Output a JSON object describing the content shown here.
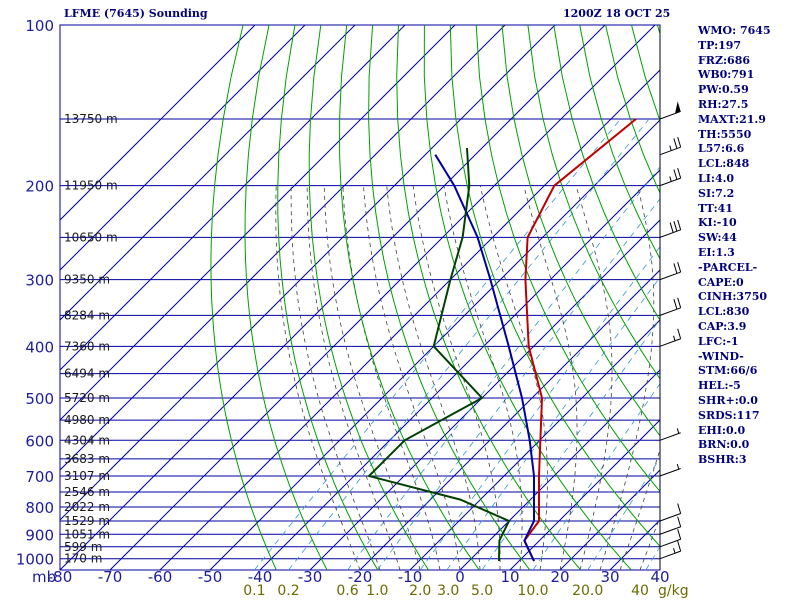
{
  "title_left": "LFME (7645) Sounding",
  "title_right": "1200Z 18 OCT 25",
  "chart_data": {
    "type": "line",
    "diagram": "skew-t log-p",
    "pressure_labels": [
      "100",
      "200",
      "300",
      "400",
      "500",
      "600",
      "700",
      "800",
      "900",
      "1000"
    ],
    "unit_label": "mb",
    "temperature_ticks": [
      "-80",
      "-70",
      "-60",
      "-50",
      "-40",
      "-30",
      "-20",
      "-10",
      "0",
      "10",
      "20",
      "30",
      "40"
    ],
    "mixing_ratio_labels": [
      "0.1",
      "0.2",
      "0.6",
      "1.0",
      "2.0",
      "3.0",
      "5.0",
      "10.0",
      "20.0",
      "40"
    ],
    "mixing_ratio_unit": "g/kg",
    "height_labels": [
      {
        "p": 150,
        "text": "13750 m"
      },
      {
        "p": 200,
        "text": "11950 m"
      },
      {
        "p": 250,
        "text": "10650 m"
      },
      {
        "p": 300,
        "text": "9350 m"
      },
      {
        "p": 350,
        "text": "8284 m"
      },
      {
        "p": 400,
        "text": "7360 m"
      },
      {
        "p": 450,
        "text": "6494 m"
      },
      {
        "p": 500,
        "text": "5720 m"
      },
      {
        "p": 550,
        "text": "4980 m"
      },
      {
        "p": 600,
        "text": "4304 m"
      },
      {
        "p": 650,
        "text": "3683 m"
      },
      {
        "p": 700,
        "text": "3107 m"
      },
      {
        "p": 750,
        "text": "2546 m"
      },
      {
        "p": 800,
        "text": "2022 m"
      },
      {
        "p": 850,
        "text": "1529 m"
      },
      {
        "p": 900,
        "text": "1051 m"
      },
      {
        "p": 950,
        "text": "599 m"
      },
      {
        "p": 1000,
        "text": "170 m"
      }
    ],
    "series": [
      {
        "role": "temperature",
        "color": "#c00000",
        "points": [
          [
            1010,
            13
          ],
          [
            925,
            7
          ],
          [
            850,
            6
          ],
          [
            700,
            -3
          ],
          [
            500,
            -18
          ],
          [
            400,
            -31
          ],
          [
            300,
            -45
          ],
          [
            250,
            -53
          ],
          [
            200,
            -58
          ],
          [
            150,
            -55
          ]
        ]
      },
      {
        "role": "parcel",
        "color": "#0000a0",
        "points": [
          [
            1010,
            13
          ],
          [
            925,
            7
          ],
          [
            850,
            5
          ],
          [
            700,
            -4
          ],
          [
            600,
            -12
          ],
          [
            500,
            -22
          ],
          [
            400,
            -35
          ],
          [
            300,
            -52
          ],
          [
            250,
            -63
          ],
          [
            200,
            -78
          ],
          [
            175,
            -88
          ]
        ]
      },
      {
        "role": "dewpoint",
        "color": "#004000",
        "points": [
          [
            1010,
            6
          ],
          [
            925,
            2
          ],
          [
            850,
            0
          ],
          [
            775,
            -14
          ],
          [
            700,
            -37
          ],
          [
            600,
            -37
          ],
          [
            500,
            -30
          ],
          [
            400,
            -50
          ],
          [
            300,
            -60
          ],
          [
            250,
            -66
          ],
          [
            200,
            -75
          ],
          [
            170,
            -83
          ]
        ]
      }
    ],
    "wind_barbs": [
      {
        "p": 150,
        "speed": 50
      },
      {
        "p": 175,
        "speed": 25
      },
      {
        "p": 200,
        "speed": 25
      },
      {
        "p": 250,
        "speed": 30
      },
      {
        "p": 300,
        "speed": 20
      },
      {
        "p": 350,
        "speed": 20
      },
      {
        "p": 400,
        "speed": 15
      },
      {
        "p": 600,
        "speed": 5
      },
      {
        "p": 700,
        "speed": 5
      },
      {
        "p": 850,
        "speed": 10
      },
      {
        "p": 900,
        "speed": 10
      },
      {
        "p": 950,
        "speed": 10
      },
      {
        "p": 1000,
        "speed": 15
      }
    ]
  },
  "indices": [
    "WMO: 7645",
    "TP:197",
    "FRZ:686",
    "WB0:791",
    "PW:0.59",
    "RH:27.5",
    "MAXT:21.9",
    "TH:5550",
    "L57:6.6",
    "LCL:848",
    "LI:4.0",
    "SI:7.2",
    "TT:41",
    "KI:-10",
    "SW:44",
    "EI:1.3",
    "-PARCEL-",
    "CAPE:0",
    "CINH:3750",
    "LCL:830",
    "CAP:3.9",
    "LFC:-1",
    "-WIND-",
    "STM:66/6",
    "HEL:-5",
    "SHR+:0.0",
    "SRDS:117",
    "EHI:0.0",
    "BRN:0.0",
    "BSHR:3"
  ],
  "colors": {
    "grid": "#0000a0",
    "isotherm": "#0000a0",
    "dry_adiabat": "#00a000",
    "moist_adiabat": "#404040",
    "mixing_ratio": "#3399cc",
    "mixing_label": "#6b6b00"
  }
}
